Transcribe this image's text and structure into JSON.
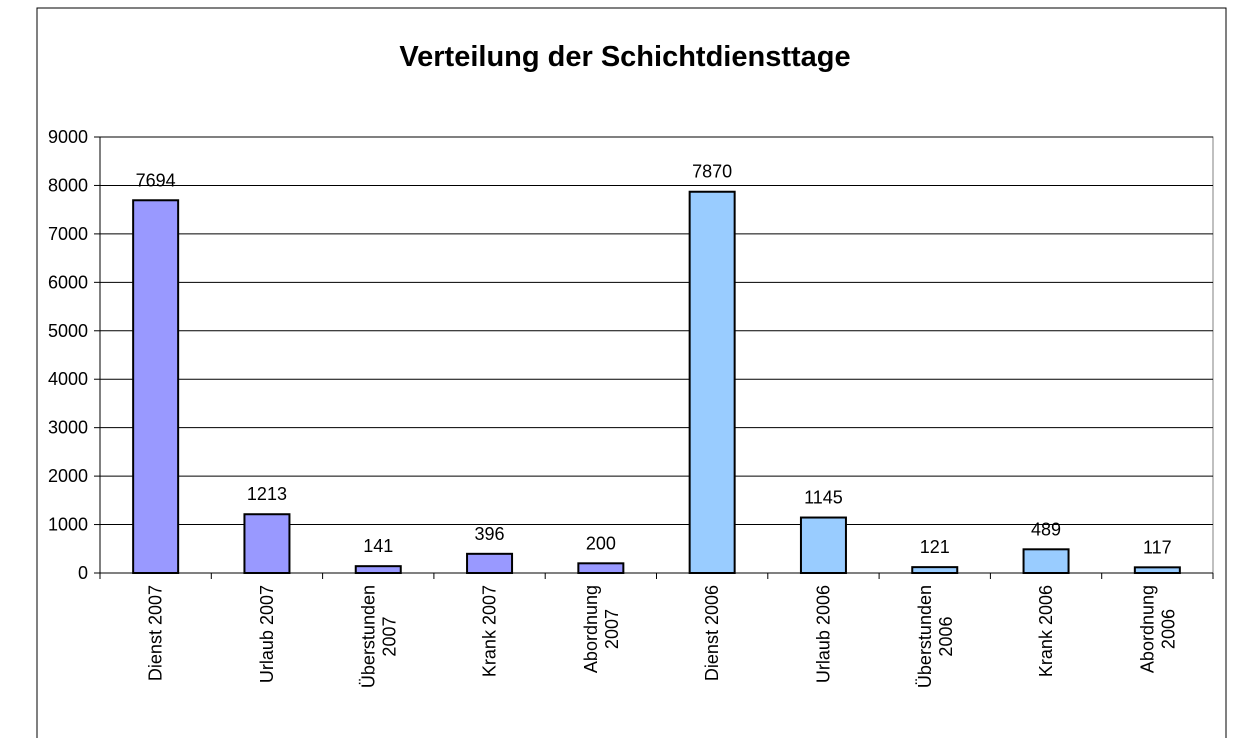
{
  "chart_data": {
    "type": "bar",
    "title": "Verteilung der Schichtdiensttage",
    "categories": [
      "Dienst 2007",
      "Urlaub 2007",
      "Überstunden 2007",
      "Krank 2007",
      "Abordnung 2007",
      "Dienst 2006",
      "Urlaub 2006",
      "Überstunden 2006",
      "Krank 2006",
      "Abordnung 2006"
    ],
    "values": [
      7694,
      1213,
      141,
      396,
      200,
      7870,
      1145,
      121,
      489,
      117
    ],
    "colors": [
      "#9999ff",
      "#9999ff",
      "#9999ff",
      "#9999ff",
      "#9999ff",
      "#99ccff",
      "#99ccff",
      "#99ccff",
      "#99ccff",
      "#99ccff"
    ],
    "ylim": [
      0,
      9000
    ],
    "yticks": [
      0,
      1000,
      2000,
      3000,
      4000,
      5000,
      6000,
      7000,
      8000,
      9000
    ],
    "grid": true
  }
}
